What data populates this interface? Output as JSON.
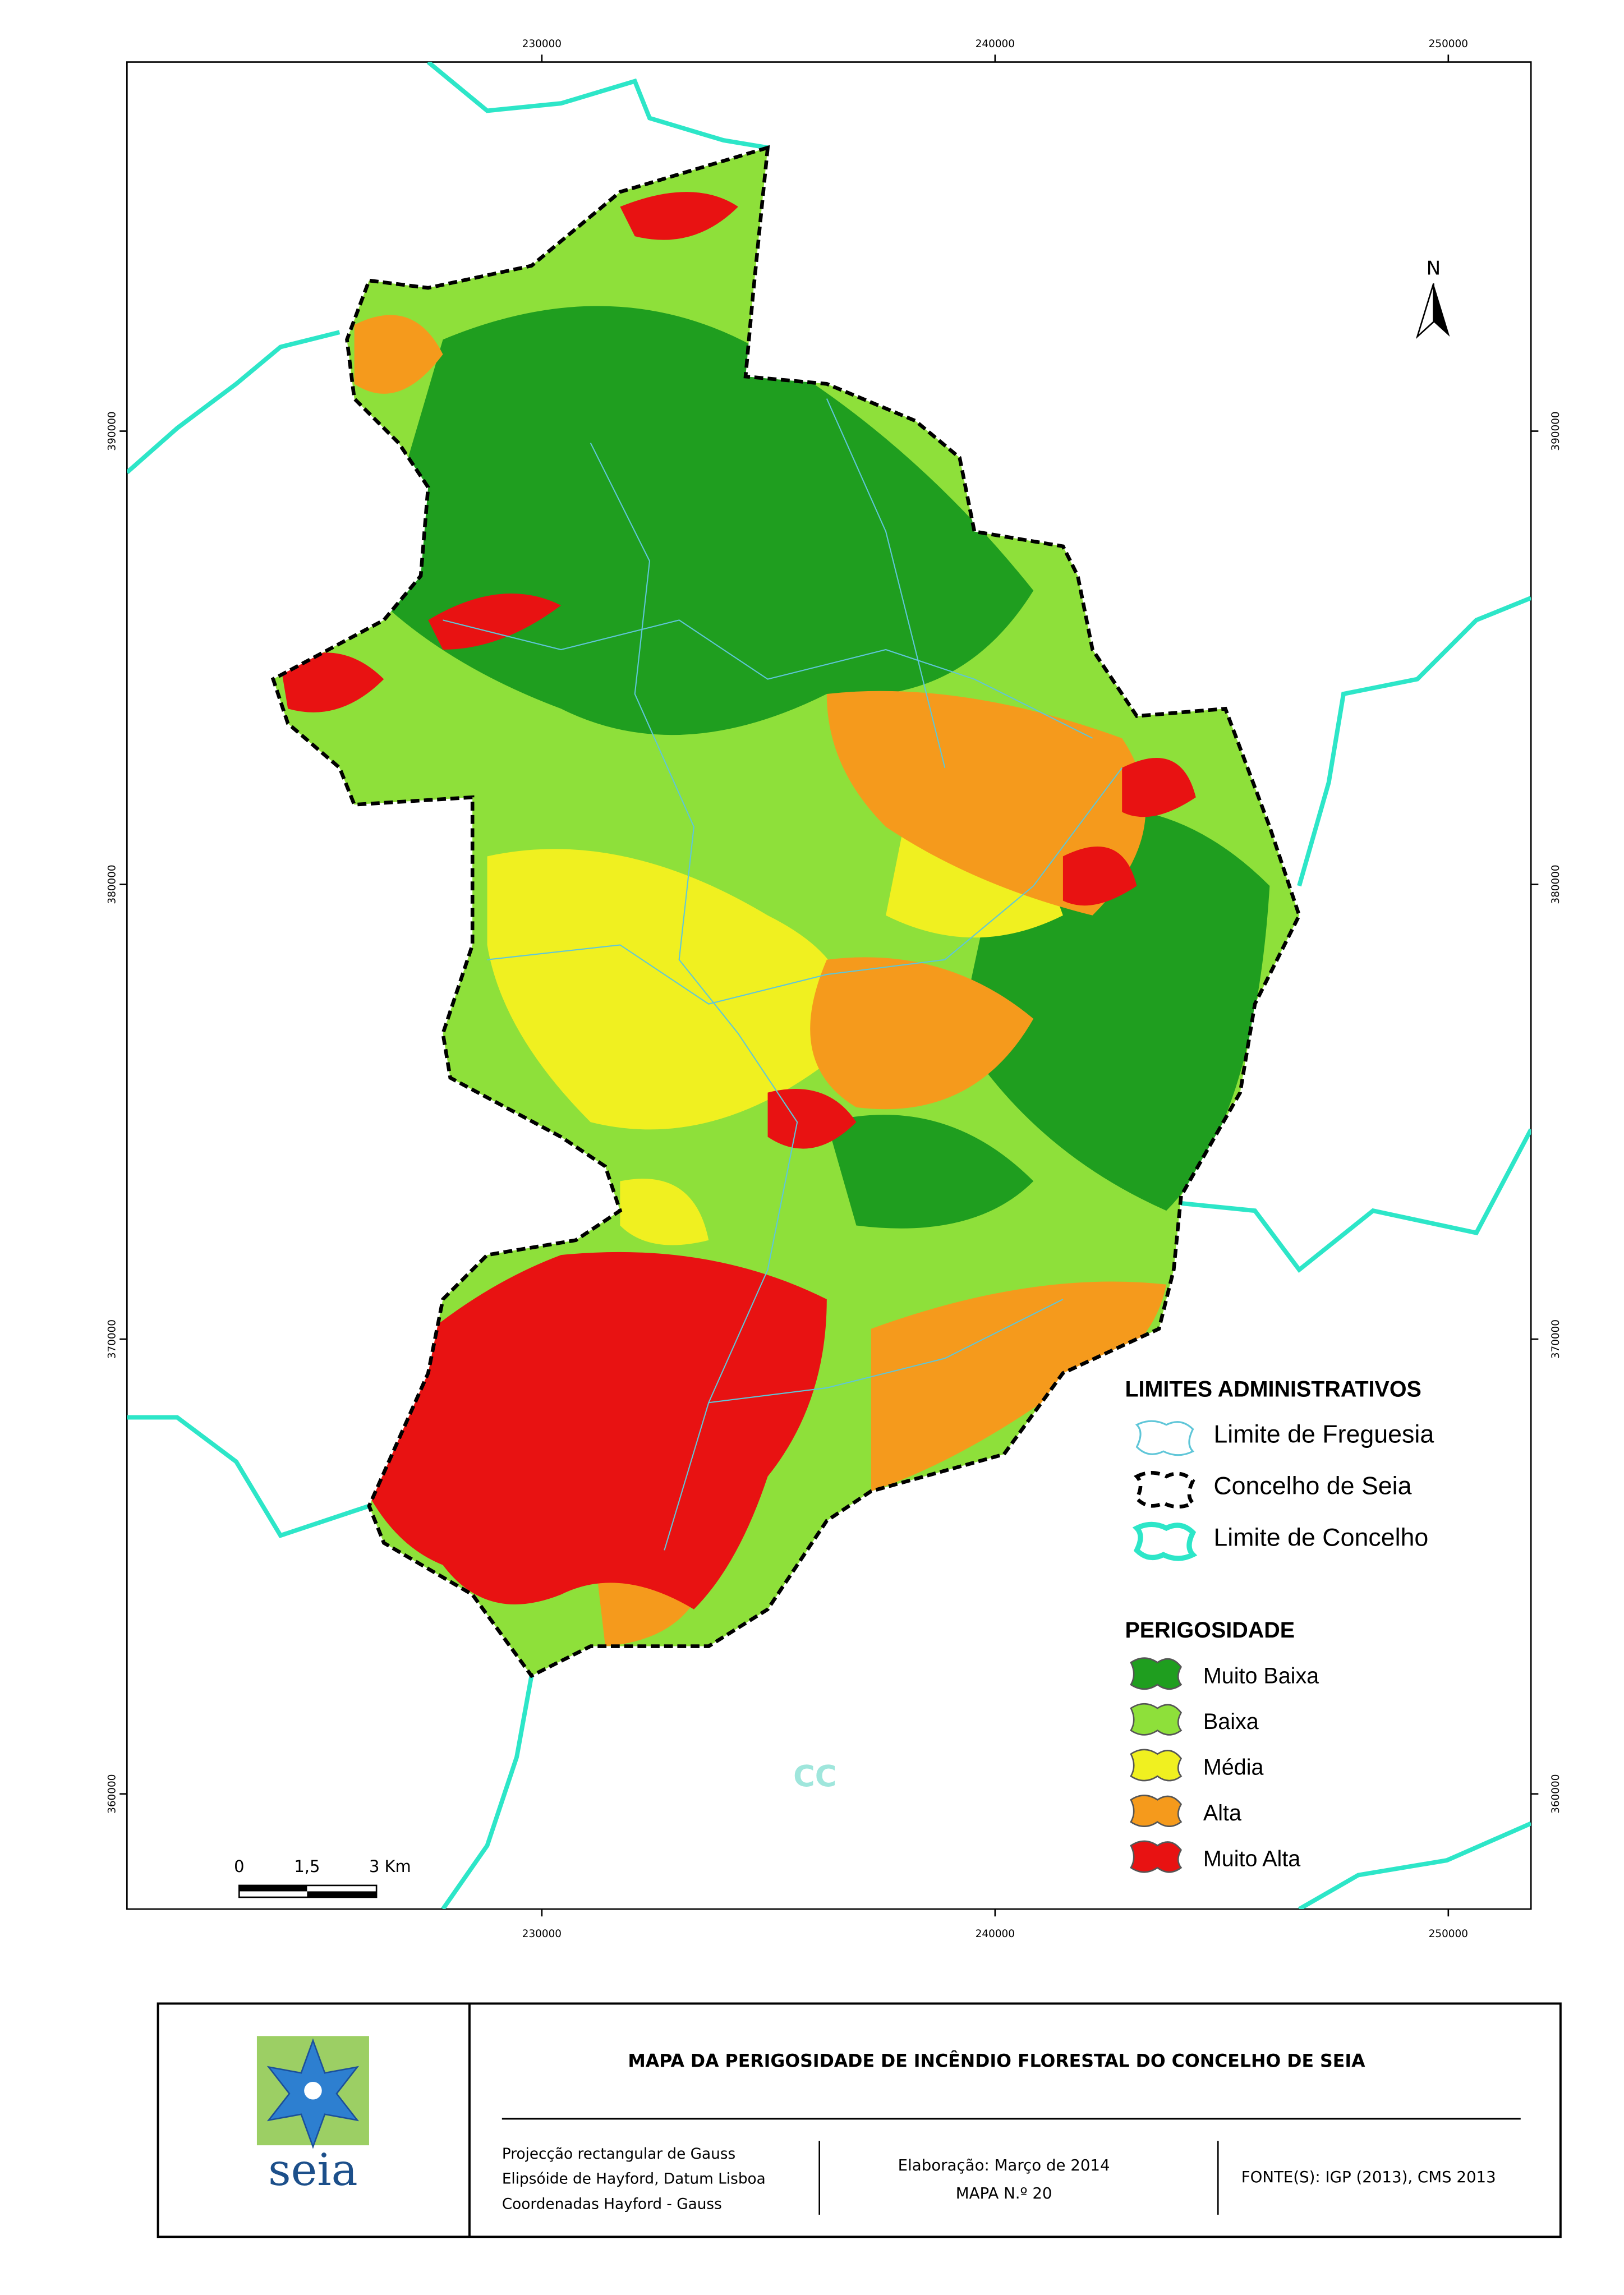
{
  "map": {
    "x_ticks": [
      "230000",
      "240000",
      "250000"
    ],
    "y_ticks": [
      "390000",
      "380000",
      "370000",
      "360000"
    ],
    "north": "N",
    "scale_bar": [
      "0",
      "1,5",
      "3 Km"
    ],
    "neighbour_label": "CC",
    "legend": {
      "admin_title": "LIMITES ADMINISTRATIVOS",
      "admin_items": [
        "Limite de Freguesia",
        "Concelho de Seia",
        "Limite de Concelho"
      ],
      "hazard_title": "PERIGOSIDADE",
      "hazard_items": [
        {
          "label": "Muito Baixa",
          "color": "#1f9e1f"
        },
        {
          "label": "Baixa",
          "color": "#8ee03a"
        },
        {
          "label": "Média",
          "color": "#f0f020"
        },
        {
          "label": "Alta",
          "color": "#f59a1c"
        },
        {
          "label": "Muito Alta",
          "color": "#e81212"
        }
      ]
    }
  },
  "title_block": {
    "logo": "seia",
    "title": "MAPA DA PERIGOSIDADE DE INCÊNDIO FLORESTAL DO CONCELHO DE SEIA",
    "projection": [
      "Projecção rectangular de Gauss",
      "Elipsóide de Hayford, Datum Lisboa",
      "Coordenadas Hayford - Gauss"
    ],
    "date": "Elaboração: Março de 2014",
    "map_number": "MAPA N.º 20",
    "sources": "FONTE(S): IGP (2013), CMS 2013"
  }
}
